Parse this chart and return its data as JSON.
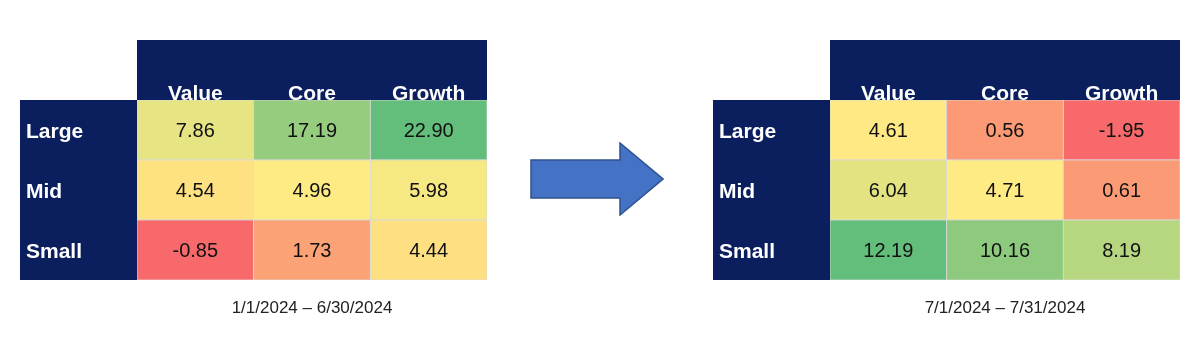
{
  "chart_data": [
    {
      "type": "heatmap",
      "categories": [
        "Value",
        "Core",
        "Growth"
      ],
      "y_categories": [
        "Large",
        "Mid",
        "Small"
      ],
      "cells": [
        [
          7.86,
          17.19,
          22.9
        ],
        [
          4.54,
          4.96,
          5.98
        ],
        [
          -0.85,
          1.73,
          4.44
        ]
      ],
      "cell_labels": [
        [
          "7.86",
          "17.19",
          "22.90"
        ],
        [
          "4.54",
          "4.96",
          "5.98"
        ],
        [
          "-0.85",
          "1.73",
          "4.44"
        ]
      ],
      "annotations": [
        "1/1/2024 – 6/30/2024"
      ]
    },
    {
      "type": "heatmap",
      "categories": [
        "Value",
        "Core",
        "Growth"
      ],
      "y_categories": [
        "Large",
        "Mid",
        "Small"
      ],
      "cells": [
        [
          4.61,
          0.56,
          -1.95
        ],
        [
          6.04,
          4.71,
          0.61
        ],
        [
          12.19,
          10.16,
          8.19
        ]
      ],
      "cell_labels": [
        [
          "4.61",
          "0.56",
          "-1.95"
        ],
        [
          "6.04",
          "4.71",
          "0.61"
        ],
        [
          "12.19",
          "10.16",
          "8.19"
        ]
      ],
      "annotations": [
        "7/1/2024 – 7/31/2024"
      ]
    }
  ]
}
